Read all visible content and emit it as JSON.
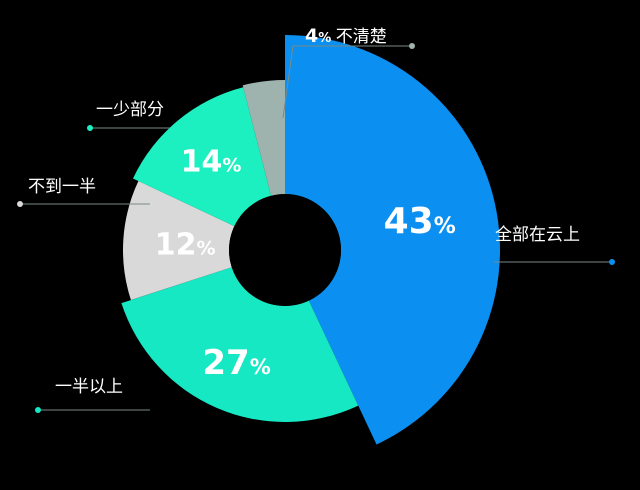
{
  "chart_data": {
    "type": "pie",
    "variant": "donut with variable-length slices",
    "background": "#000000",
    "slices": [
      {
        "label": "全部在云上",
        "value": 43,
        "value_label": "43",
        "unit": "%",
        "color": "#0B8FF0"
      },
      {
        "label": "一半以上",
        "value": 27,
        "value_label": "27",
        "unit": "%",
        "color": "#16E8C4"
      },
      {
        "label": "不到一半",
        "value": 12,
        "value_label": "12",
        "unit": "%",
        "color": "#D9D9D9"
      },
      {
        "label": "一少部分",
        "value": 14,
        "value_label": "14",
        "unit": "%",
        "color": "#1DF0C0"
      },
      {
        "label": "不清楚",
        "value": 4,
        "value_label": "4",
        "unit": "%",
        "color": "#9FB3AE"
      }
    ]
  }
}
